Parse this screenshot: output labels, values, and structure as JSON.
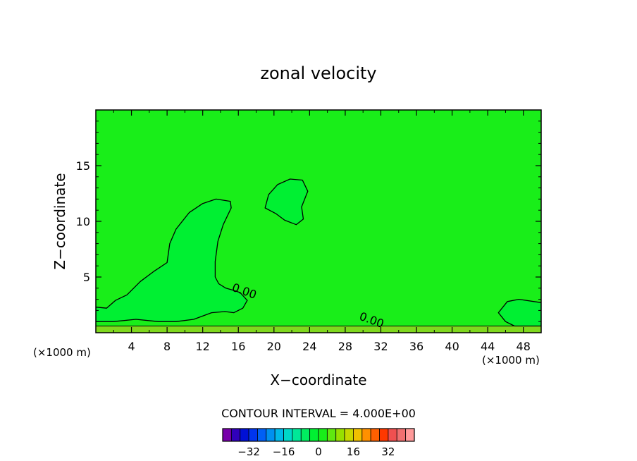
{
  "chart_data": {
    "type": "contour",
    "title": "zonal velocity",
    "xlabel": "X−coordinate",
    "ylabel": "Z−coordinate",
    "x_unit_left": "(×1000 m)",
    "x_unit_right": "(×1000 m)",
    "xlim": [
      0,
      50
    ],
    "ylim": [
      0,
      20
    ],
    "x_ticks": [
      4,
      8,
      12,
      16,
      20,
      24,
      28,
      32,
      36,
      40,
      44,
      48
    ],
    "x_tick_labels": [
      "4",
      "8",
      "12",
      "16",
      "20",
      "24",
      "28",
      "32",
      "36",
      "40",
      "44",
      "48"
    ],
    "y_ticks": [
      5,
      10,
      15
    ],
    "y_tick_labels": [
      "5",
      "10",
      "15"
    ],
    "background_color": "#19ee19",
    "contour_labels": [
      {
        "text": "0.00",
        "x": 15.2,
        "y": 3.8
      },
      {
        "text": "0.00",
        "x": 29.5,
        "y": 1.2
      }
    ],
    "regions": [
      {
        "name": "plume",
        "color": "#00f032",
        "points": [
          [
            0,
            2.3
          ],
          [
            1.2,
            2.2
          ],
          [
            2.2,
            2.9
          ],
          [
            3.5,
            3.4
          ],
          [
            5,
            4.6
          ],
          [
            6.5,
            5.5
          ],
          [
            8,
            6.3
          ],
          [
            8.3,
            8.0
          ],
          [
            9,
            9.3
          ],
          [
            10.5,
            10.8
          ],
          [
            12,
            11.6
          ],
          [
            13.5,
            12.0
          ],
          [
            15.1,
            11.8
          ],
          [
            15.2,
            11.2
          ],
          [
            14.3,
            9.7
          ],
          [
            13.7,
            8.2
          ],
          [
            13.4,
            6.4
          ],
          [
            13.4,
            5.0
          ],
          [
            13.8,
            4.4
          ],
          [
            14.6,
            4.0
          ],
          [
            15.5,
            3.8
          ],
          [
            16.2,
            3.6
          ],
          [
            17.0,
            2.9
          ],
          [
            16.5,
            2.2
          ],
          [
            15.5,
            1.8
          ],
          [
            14.5,
            1.9
          ],
          [
            13.0,
            1.8
          ],
          [
            11.0,
            1.2
          ],
          [
            9.0,
            1.0
          ],
          [
            7.0,
            1.0
          ],
          [
            4.5,
            1.2
          ],
          [
            2.0,
            1.0
          ],
          [
            0,
            1.0
          ]
        ]
      },
      {
        "name": "upper-cell",
        "color": "#00f032",
        "points": [
          [
            19.0,
            11.2
          ],
          [
            19.4,
            12.4
          ],
          [
            20.4,
            13.3
          ],
          [
            21.8,
            13.8
          ],
          [
            23.2,
            13.7
          ],
          [
            23.8,
            12.7
          ],
          [
            23.1,
            11.3
          ],
          [
            23.3,
            10.2
          ],
          [
            22.5,
            9.7
          ],
          [
            21.2,
            10.1
          ],
          [
            20.2,
            10.7
          ]
        ]
      },
      {
        "name": "right-cell",
        "color": "#00f032",
        "points": [
          [
            45.2,
            1.8
          ],
          [
            46.2,
            2.8
          ],
          [
            47.5,
            3.0
          ],
          [
            50,
            2.7
          ],
          [
            50,
            0.6
          ],
          [
            47,
            0.6
          ],
          [
            46,
            1.0
          ]
        ]
      }
    ],
    "ground_band": {
      "ymax": 0.6,
      "color": "#7fd81e"
    },
    "colorbar": {
      "title": "CONTOUR INTERVAL = 4.000E+00",
      "colors": [
        "#7700aa",
        "#3000bb",
        "#0010d5",
        "#0035ee",
        "#0060f5",
        "#0090f0",
        "#00b8e8",
        "#00d8c8",
        "#00e898",
        "#00ee60",
        "#00f032",
        "#19ee19",
        "#60e810",
        "#98e000",
        "#c8d800",
        "#f0c000",
        "#ff9000",
        "#ff6000",
        "#ff3800",
        "#f05050",
        "#f07070",
        "#ff9a9a"
      ],
      "tick_labels": [
        "−32",
        "−16",
        "0",
        "16",
        "32"
      ],
      "tick_values": [
        -32,
        -16,
        0,
        16,
        32
      ],
      "vmin": -44,
      "vmax": 44
    }
  }
}
